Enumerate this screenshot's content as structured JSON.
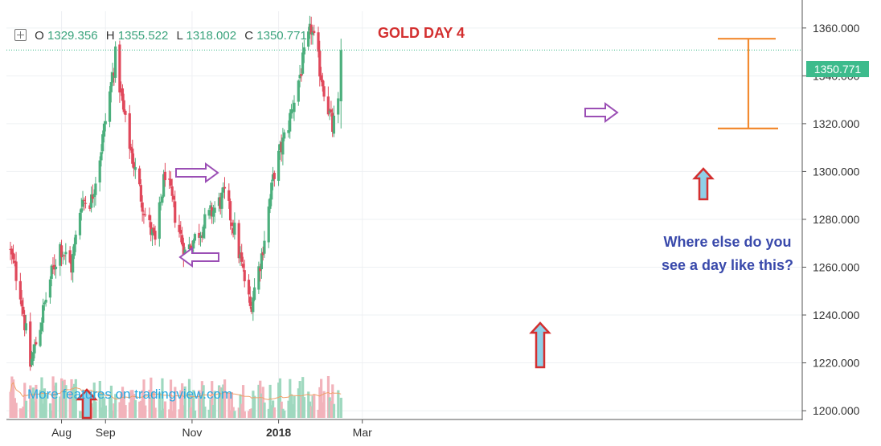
{
  "header": {
    "ohlc": [
      {
        "key": "O",
        "value": "1329.356"
      },
      {
        "key": "H",
        "value": "1355.522"
      },
      {
        "key": "L",
        "value": "1318.002"
      },
      {
        "key": "C",
        "value": "1350.771"
      }
    ],
    "title": "GOLD DAY 4"
  },
  "annotation": {
    "line1": "Where else do you",
    "line2": "see a day like this?"
  },
  "watermark": "More features on tradingview.com",
  "last_price_label": "1350.771",
  "colors": {
    "up": "#4caf7d",
    "down": "#e0485b",
    "vol_up": "#9fd8bf",
    "vol_down": "#f2b3bb",
    "ma": "#f0a06a",
    "title": "#d32f2f",
    "annotation": "#3949ab",
    "watermark": "#27a9e1",
    "arrow_outline": "#d32f2f",
    "arrow_fill": "#8fd0e8",
    "side_arrow": "#9b4fb5",
    "range_marker": "#f28a30"
  },
  "chart_data": {
    "type": "candlestick",
    "symbol": "GOLD",
    "interval": "1D",
    "y_ticks": [
      "1200.000",
      "1220.000",
      "1240.000",
      "1260.000",
      "1280.000",
      "1300.000",
      "1320.000",
      "1340.000",
      "1360.000"
    ],
    "ylim": [
      1197,
      1367
    ],
    "x_labels": [
      {
        "label": "Aug",
        "date": "2017-08-01"
      },
      {
        "label": "Sep",
        "date": "2017-09-01"
      },
      {
        "label": "Nov",
        "date": "2017-11-01"
      },
      {
        "label": "2018",
        "date": "2018-01-01"
      },
      {
        "label": "Mar",
        "date": "2018-03-01"
      }
    ],
    "anchors": [
      {
        "date": "2017-06-26",
        "close": 1266
      },
      {
        "date": "2017-07-03",
        "close": 1250
      },
      {
        "date": "2017-07-10",
        "close": 1219
      },
      {
        "date": "2017-07-13",
        "close": 1226
      },
      {
        "date": "2017-07-17",
        "close": 1236
      },
      {
        "date": "2017-07-24",
        "close": 1255
      },
      {
        "date": "2017-07-31",
        "close": 1269
      },
      {
        "date": "2017-08-08",
        "close": 1260
      },
      {
        "date": "2017-08-15",
        "close": 1288
      },
      {
        "date": "2017-08-22",
        "close": 1288
      },
      {
        "date": "2017-08-29",
        "close": 1310
      },
      {
        "date": "2017-09-08",
        "close": 1348
      },
      {
        "date": "2017-09-15",
        "close": 1320
      },
      {
        "date": "2017-09-22",
        "close": 1300
      },
      {
        "date": "2017-09-29",
        "close": 1282
      },
      {
        "date": "2017-10-06",
        "close": 1270
      },
      {
        "date": "2017-10-13",
        "close": 1300
      },
      {
        "date": "2017-10-20",
        "close": 1282
      },
      {
        "date": "2017-10-27",
        "close": 1266
      },
      {
        "date": "2017-11-06",
        "close": 1275
      },
      {
        "date": "2017-11-15",
        "close": 1283
      },
      {
        "date": "2017-11-24",
        "close": 1290
      },
      {
        "date": "2017-12-01",
        "close": 1275
      },
      {
        "date": "2017-12-12",
        "close": 1243
      },
      {
        "date": "2017-12-20",
        "close": 1265
      },
      {
        "date": "2017-12-29",
        "close": 1300
      },
      {
        "date": "2018-01-08",
        "close": 1320
      },
      {
        "date": "2018-01-15",
        "close": 1338
      },
      {
        "date": "2018-01-24",
        "close": 1360
      },
      {
        "date": "2018-01-30",
        "close": 1343
      },
      {
        "date": "2018-02-02",
        "close": 1335
      },
      {
        "date": "2018-02-08",
        "close": 1318
      },
      {
        "date": "2018-02-13",
        "close": 1329.356
      }
    ],
    "last_candle": {
      "date": "2018-02-14",
      "open": 1329.356,
      "high": 1355.522,
      "low": 1318.002,
      "close": 1350.771
    },
    "volume_ma_visible": true,
    "grid": true
  }
}
